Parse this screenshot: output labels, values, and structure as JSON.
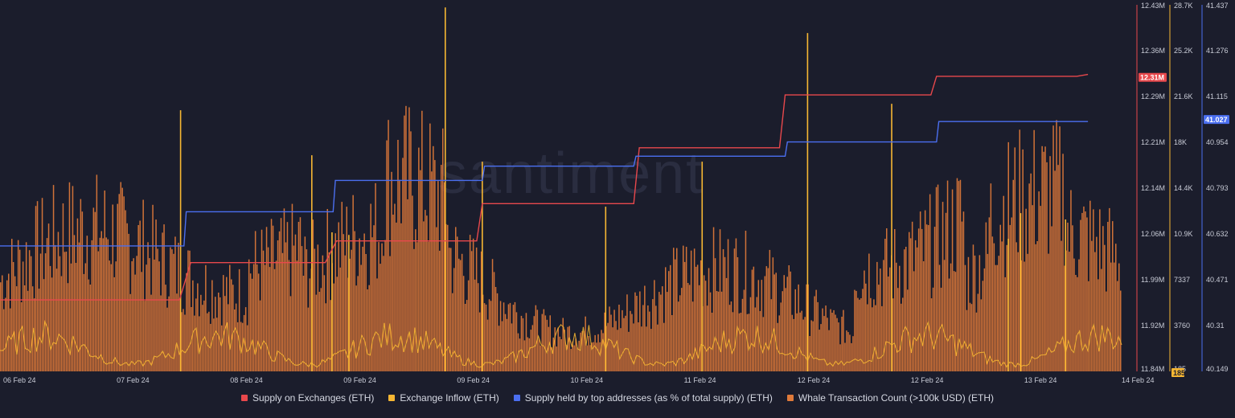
{
  "chart_data": {
    "type": "line",
    "watermark": "santiment",
    "x_ticks": [
      "06 Feb 24",
      "07 Feb 24",
      "08 Feb 24",
      "09 Feb 24",
      "09 Feb 24",
      "10 Feb 24",
      "11 Feb 24",
      "12 Feb 24",
      "12 Feb 24",
      "13 Feb 24",
      "14 Feb 24"
    ],
    "axes": {
      "supply_on_exchanges": {
        "ticks": [
          "12.43M",
          "12.36M",
          "12.29M",
          "12.21M",
          "12.14M",
          "12.06M",
          "11.99M",
          "11.92M",
          "11.84M"
        ],
        "min": 11.84,
        "max": 12.43,
        "unit": "M",
        "current_label": "12.31M"
      },
      "exchange_inflow": {
        "ticks": [
          "28.7K",
          "25.2K",
          "21.6K",
          "18K",
          "14.4K",
          "10.9K",
          "7337",
          "3760",
          "185"
        ],
        "min": 185,
        "max": 28700,
        "current_label": "185"
      },
      "top_addresses": {
        "ticks": [
          "41.437",
          "41.276",
          "41.115",
          "40.954",
          "40.793",
          "40.632",
          "40.471",
          "40.31",
          "40.149"
        ],
        "min": 40.149,
        "max": 41.437,
        "current_label": "41.027"
      }
    },
    "series": [
      {
        "name": "Supply on Exchanges (ETH)",
        "color": "#e8484c",
        "axis": "supply_on_exchanges",
        "x": [
          0,
          0.16,
          0.17,
          0.29,
          0.3,
          0.425,
          0.43,
          0.565,
          0.57,
          0.695,
          0.7,
          0.83,
          0.835,
          0.96,
          0.97
        ],
        "y": [
          11.955,
          11.955,
          12.015,
          12.015,
          12.05,
          12.05,
          12.11,
          12.11,
          12.2,
          12.2,
          12.285,
          12.285,
          12.315,
          12.315,
          12.318
        ]
      },
      {
        "name": "Exchange Inflow (ETH)",
        "color": "#f7b733",
        "axis": "exchange_inflow",
        "spikes": [
          {
            "x": 0.161,
            "y": 20500
          },
          {
            "x": 0.278,
            "y": 17000
          },
          {
            "x": 0.296,
            "y": 11000
          },
          {
            "x": 0.311,
            "y": 10800
          },
          {
            "x": 0.397,
            "y": 28500
          },
          {
            "x": 0.43,
            "y": 16500
          },
          {
            "x": 0.54,
            "y": 13000
          },
          {
            "x": 0.626,
            "y": 16500
          },
          {
            "x": 0.72,
            "y": 26500
          },
          {
            "x": 0.795,
            "y": 21000
          },
          {
            "x": 0.899,
            "y": 10500
          },
          {
            "x": 0.91,
            "y": 12500
          },
          {
            "x": 0.95,
            "y": 12000
          }
        ]
      },
      {
        "name": "Supply held by top addresses (as % of total supply) (ETH)",
        "color": "#4b6ff0",
        "axis": "top_addresses",
        "x": [
          0,
          0.164,
          0.166,
          0.297,
          0.299,
          0.43,
          0.432,
          0.565,
          0.567,
          0.7,
          0.702,
          0.835,
          0.837,
          0.97
        ],
        "y": [
          40.59,
          40.59,
          40.71,
          40.71,
          40.82,
          40.82,
          40.87,
          40.87,
          40.905,
          40.905,
          40.955,
          40.955,
          41.027,
          41.027
        ]
      },
      {
        "name": "Whale Transaction Count (>100k USD) (ETH)",
        "color": "#e07a3a",
        "axis": "exchange_inflow"
      }
    ]
  }
}
